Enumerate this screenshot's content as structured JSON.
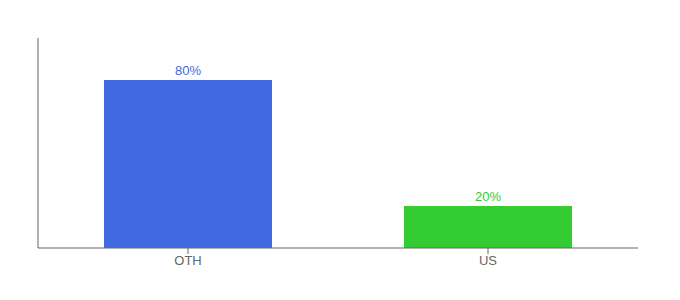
{
  "chart_data": {
    "type": "bar",
    "categories": [
      "OTH",
      "US"
    ],
    "values": [
      80,
      20
    ],
    "value_labels": [
      "80%",
      "20%"
    ],
    "colors": [
      "#4169e1",
      "#33cc33"
    ],
    "ylim": [
      0,
      100
    ],
    "data_labels": true,
    "tick_labels": "x",
    "grid": false
  }
}
